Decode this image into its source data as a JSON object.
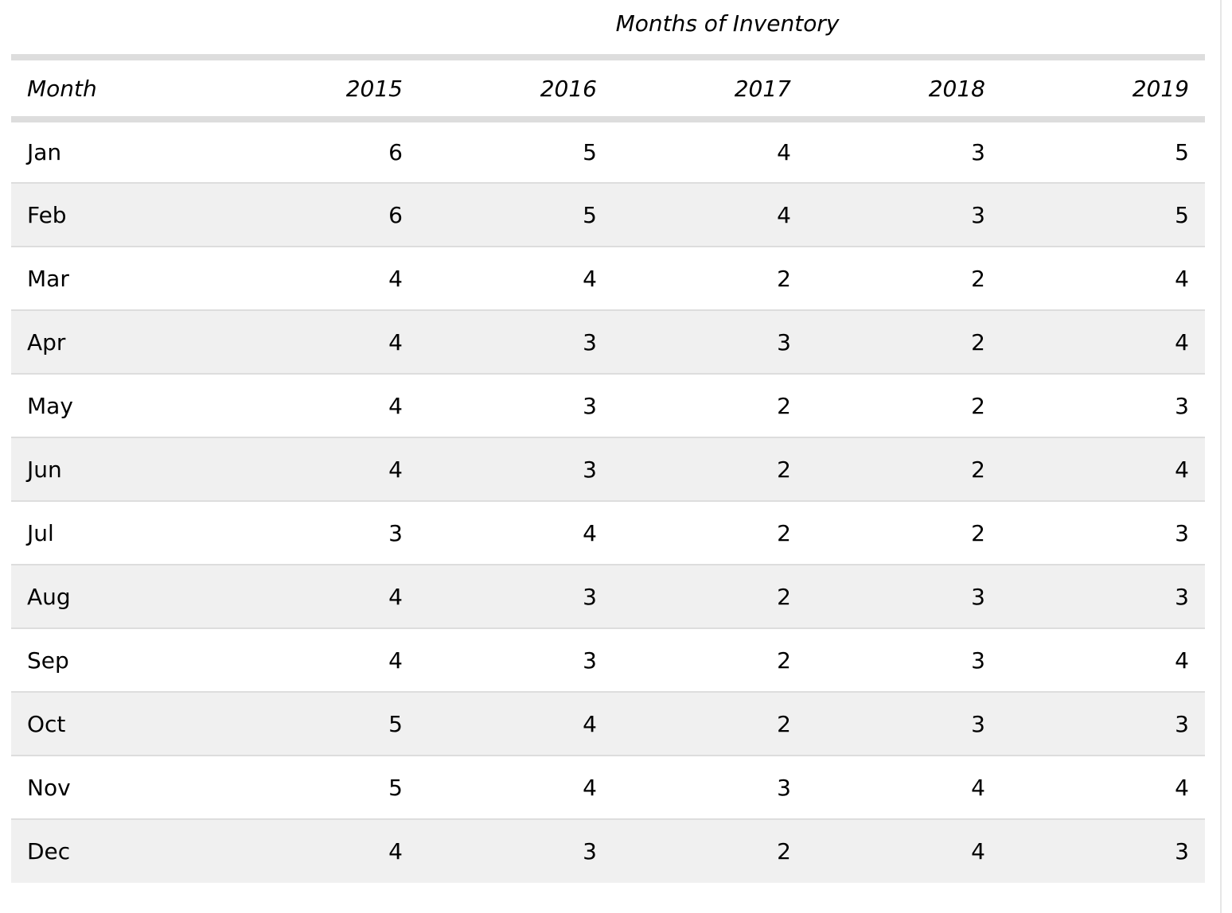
{
  "chart_data": {
    "type": "table",
    "title": "Months of Inventory",
    "columns": [
      "Month",
      "2015",
      "2016",
      "2017",
      "2018",
      "2019"
    ],
    "rows": [
      [
        "Jan",
        6,
        5,
        4,
        3,
        5
      ],
      [
        "Feb",
        6,
        5,
        4,
        3,
        5
      ],
      [
        "Mar",
        4,
        4,
        2,
        2,
        4
      ],
      [
        "Apr",
        4,
        3,
        3,
        2,
        4
      ],
      [
        "May",
        4,
        3,
        2,
        2,
        3
      ],
      [
        "Jun",
        4,
        3,
        2,
        2,
        4
      ],
      [
        "Jul",
        3,
        4,
        2,
        2,
        3
      ],
      [
        "Aug",
        4,
        3,
        2,
        3,
        3
      ],
      [
        "Sep",
        4,
        3,
        2,
        3,
        4
      ],
      [
        "Oct",
        5,
        4,
        2,
        3,
        3
      ],
      [
        "Nov",
        5,
        4,
        3,
        4,
        4
      ],
      [
        "Dec",
        4,
        3,
        2,
        4,
        3
      ]
    ]
  },
  "colors": {
    "rule": "#dddddd",
    "shaded_row": "#f0f0f0",
    "scrollbar_track": "#e6e6e6"
  }
}
